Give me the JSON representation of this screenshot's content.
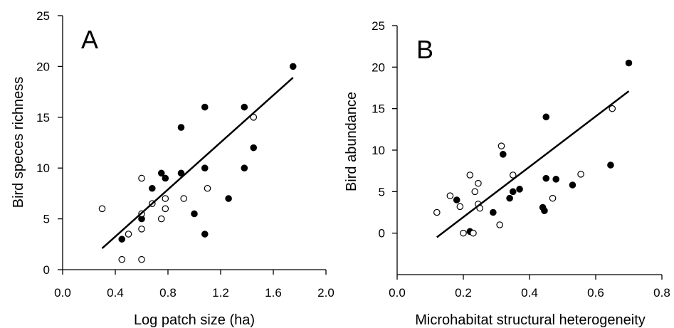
{
  "chart_data": [
    {
      "type": "scatter",
      "panel_label": "A",
      "title": "",
      "xlabel": "Log patch size (ha)",
      "ylabel": "Bird speces richness",
      "xlim": [
        0.0,
        2.0
      ],
      "ylim": [
        0,
        25
      ],
      "xticks": [
        "0.0",
        "0.4",
        "0.8",
        "1.2",
        "1.6",
        "2.0"
      ],
      "yticks": [
        "0",
        "5",
        "10",
        "15",
        "20",
        "25"
      ],
      "grid": false,
      "series": [
        {
          "marker": "filled",
          "color": "#000000",
          "points": [
            [
              0.45,
              3
            ],
            [
              0.6,
              5
            ],
            [
              0.68,
              8
            ],
            [
              0.75,
              9.5
            ],
            [
              0.78,
              9
            ],
            [
              0.9,
              14
            ],
            [
              0.9,
              9.5
            ],
            [
              1.0,
              5.5
            ],
            [
              1.08,
              16
            ],
            [
              1.08,
              10
            ],
            [
              1.08,
              3.5
            ],
            [
              1.26,
              7
            ],
            [
              1.38,
              16
            ],
            [
              1.38,
              10
            ],
            [
              1.45,
              12
            ],
            [
              1.75,
              20
            ]
          ]
        },
        {
          "marker": "open",
          "color": "#000000",
          "points": [
            [
              0.3,
              6
            ],
            [
              0.45,
              1
            ],
            [
              0.5,
              3.5
            ],
            [
              0.6,
              9
            ],
            [
              0.6,
              5.5
            ],
            [
              0.6,
              4
            ],
            [
              0.6,
              1
            ],
            [
              0.68,
              6.5
            ],
            [
              0.75,
              5
            ],
            [
              0.78,
              7
            ],
            [
              0.78,
              6
            ],
            [
              0.92,
              7
            ],
            [
              1.1,
              8
            ],
            [
              1.45,
              15
            ]
          ]
        }
      ],
      "trendline": [
        [
          0.3,
          2.1
        ],
        [
          1.75,
          18.9
        ]
      ]
    },
    {
      "type": "scatter",
      "panel_label": "B",
      "title": "",
      "xlabel": "Microhabitat structural heterogeneity",
      "ylabel": "Bird abundance",
      "xlim": [
        0.0,
        0.8
      ],
      "ylim": [
        -5,
        25
      ],
      "xticks": [
        "0.0",
        "0.2",
        "0.4",
        "0.6",
        "0.8"
      ],
      "yticks": [
        "0",
        "5",
        "10",
        "15",
        "20",
        "25"
      ],
      "grid": false,
      "series": [
        {
          "marker": "filled",
          "color": "#000000",
          "points": [
            [
              0.18,
              4
            ],
            [
              0.22,
              0.2
            ],
            [
              0.29,
              2.5
            ],
            [
              0.32,
              9.5
            ],
            [
              0.34,
              4.2
            ],
            [
              0.35,
              5
            ],
            [
              0.37,
              5.3
            ],
            [
              0.44,
              3.1
            ],
            [
              0.445,
              2.7
            ],
            [
              0.45,
              6.6
            ],
            [
              0.45,
              14
            ],
            [
              0.48,
              6.5
            ],
            [
              0.53,
              5.8
            ],
            [
              0.645,
              8.2
            ],
            [
              0.7,
              20.5
            ]
          ]
        },
        {
          "marker": "open",
          "color": "#000000",
          "points": [
            [
              0.12,
              2.5
            ],
            [
              0.16,
              4.5
            ],
            [
              0.19,
              3.2
            ],
            [
              0.2,
              0
            ],
            [
              0.22,
              7
            ],
            [
              0.23,
              0
            ],
            [
              0.235,
              5
            ],
            [
              0.245,
              6
            ],
            [
              0.245,
              3.5
            ],
            [
              0.25,
              3
            ],
            [
              0.31,
              1
            ],
            [
              0.315,
              10.5
            ],
            [
              0.35,
              7
            ],
            [
              0.47,
              4.2
            ],
            [
              0.555,
              7.1
            ],
            [
              0.65,
              15
            ]
          ]
        }
      ],
      "trendline": [
        [
          0.12,
          -0.5
        ],
        [
          0.7,
          17.1
        ]
      ]
    }
  ]
}
